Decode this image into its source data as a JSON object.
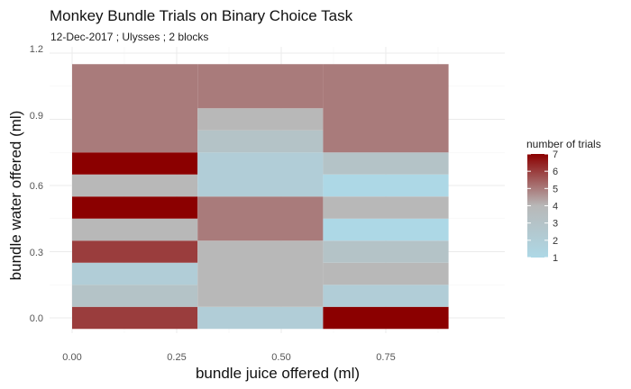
{
  "chart_data": {
    "type": "heatmap",
    "title": "Monkey Bundle Trials on Binary Choice Task",
    "subtitle": "12-Dec-2017 ; Ulysses ; 2 blocks",
    "xlabel": "bundle juice offered (ml)",
    "ylabel": "bundle water offered (ml)",
    "x_ticks": [
      "0.00",
      "0.25",
      "0.50",
      "0.75"
    ],
    "y_ticks": [
      "0.0",
      "0.3",
      "0.6",
      "0.9",
      "1.2"
    ],
    "xlim": [
      -0.1,
      0.9
    ],
    "ylim": [
      -0.1,
      1.2
    ],
    "grid": true,
    "legend": {
      "title": "number of trials",
      "position": "right",
      "range": [
        1,
        7
      ],
      "ticks": [
        "1",
        "2",
        "3",
        "4",
        "5",
        "6",
        "7"
      ],
      "colors": {
        "low": "#ADD8E6",
        "mid": "#B8B8B8",
        "high": "#8B0000"
      }
    },
    "columns": [
      {
        "x_range": [
          0.0,
          0.3
        ],
        "cells": [
          {
            "y_range": [
              -0.05,
              0.05
            ],
            "value": 6
          },
          {
            "y_range": [
              0.05,
              0.15
            ],
            "value": 3
          },
          {
            "y_range": [
              0.15,
              0.25
            ],
            "value": 2
          },
          {
            "y_range": [
              0.25,
              0.35
            ],
            "value": 6
          },
          {
            "y_range": [
              0.35,
              0.45
            ],
            "value": 4
          },
          {
            "y_range": [
              0.45,
              0.55
            ],
            "value": 7
          },
          {
            "y_range": [
              0.55,
              0.65
            ],
            "value": 4
          },
          {
            "y_range": [
              0.65,
              0.75
            ],
            "value": 7
          },
          {
            "y_range": [
              0.75,
              1.15
            ],
            "value": 5
          }
        ]
      },
      {
        "x_range": [
          0.3,
          0.6
        ],
        "cells": [
          {
            "y_range": [
              -0.05,
              0.05
            ],
            "value": 2
          },
          {
            "y_range": [
              0.05,
              0.35
            ],
            "value": 4
          },
          {
            "y_range": [
              0.35,
              0.55
            ],
            "value": 5
          },
          {
            "y_range": [
              0.55,
              0.75
            ],
            "value": 2
          },
          {
            "y_range": [
              0.75,
              0.85
            ],
            "value": 3
          },
          {
            "y_range": [
              0.85,
              0.95
            ],
            "value": 4
          },
          {
            "y_range": [
              0.95,
              1.15
            ],
            "value": 5
          }
        ]
      },
      {
        "x_range": [
          0.6,
          0.9
        ],
        "cells": [
          {
            "y_range": [
              -0.05,
              0.05
            ],
            "value": 7
          },
          {
            "y_range": [
              0.05,
              0.15
            ],
            "value": 2
          },
          {
            "y_range": [
              0.15,
              0.25
            ],
            "value": 4
          },
          {
            "y_range": [
              0.25,
              0.35
            ],
            "value": 3
          },
          {
            "y_range": [
              0.35,
              0.45
            ],
            "value": 1
          },
          {
            "y_range": [
              0.45,
              0.55
            ],
            "value": 4
          },
          {
            "y_range": [
              0.55,
              0.65
            ],
            "value": 1
          },
          {
            "y_range": [
              0.65,
              0.75
            ],
            "value": 3
          },
          {
            "y_range": [
              0.75,
              1.15
            ],
            "value": 5
          }
        ]
      }
    ]
  }
}
